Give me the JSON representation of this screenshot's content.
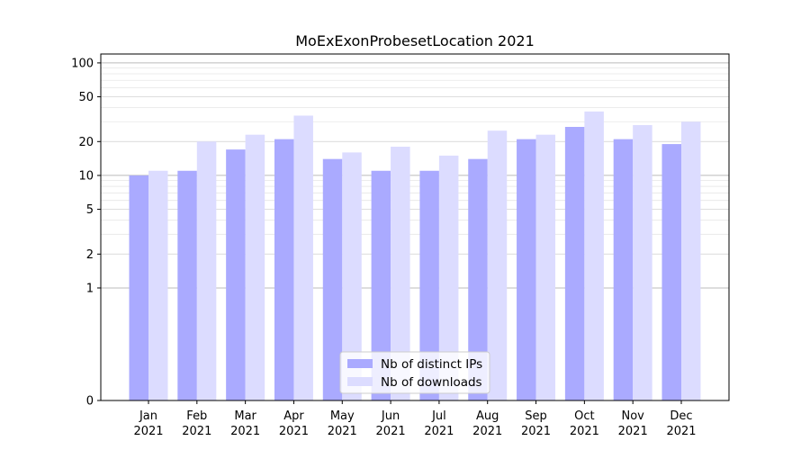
{
  "chart_data": {
    "type": "bar",
    "title": "MoExExonProbesetLocation 2021",
    "xlabel": "",
    "ylabel": "",
    "yscale": "symlog",
    "ylim": [
      0,
      120
    ],
    "yticks": [
      0,
      1,
      2,
      5,
      10,
      20,
      50,
      100
    ],
    "grid": "horizontal",
    "legend_position": "bottom-center",
    "categories": [
      [
        "Jan",
        "2021"
      ],
      [
        "Feb",
        "2021"
      ],
      [
        "Mar",
        "2021"
      ],
      [
        "Apr",
        "2021"
      ],
      [
        "May",
        "2021"
      ],
      [
        "Jun",
        "2021"
      ],
      [
        "Jul",
        "2021"
      ],
      [
        "Aug",
        "2021"
      ],
      [
        "Sep",
        "2021"
      ],
      [
        "Oct",
        "2021"
      ],
      [
        "Nov",
        "2021"
      ],
      [
        "Dec",
        "2021"
      ]
    ],
    "series": [
      {
        "name": "Nb of distinct IPs",
        "color": "#aaaaff",
        "values": [
          10,
          11,
          17,
          21,
          14,
          11,
          11,
          14,
          21,
          27,
          21,
          19
        ]
      },
      {
        "name": "Nb of downloads",
        "color": "#dcdcff",
        "values": [
          11,
          20,
          23,
          34,
          16,
          18,
          15,
          25,
          23,
          37,
          28,
          30
        ]
      }
    ]
  }
}
